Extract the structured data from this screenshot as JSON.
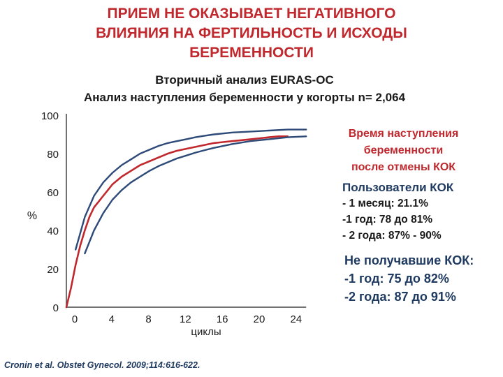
{
  "title": {
    "lines": [
      "ПРИЕМ НЕ ОКАЗЫВАЕТ НЕГАТИВНОГО",
      "ВЛИЯНИЯ НА ФЕРТИЛЬНОСТЬ И ИСХОДЫ",
      "БЕРЕМЕННОСТИ"
    ]
  },
  "subtitle": {
    "lines": [
      "Вторичный анализ EURAS-OC",
      "Анализ наступления беременности у когорты  n= 2,064"
    ]
  },
  "annotations": {
    "time_to_pregnancy": [
      "Время наступления",
      "беременности",
      "после отмены КОК"
    ],
    "coc_users": {
      "heading": "Пользователи КОК",
      "items": [
        "- 1 месяц: 21.1%",
        "-1 год: 78 до 81%",
        "- 2 года: 87% - 90%"
      ]
    },
    "non_users": {
      "heading": "Не получавшие КОК:",
      "items": [
        "-1 год: 75 до 82%",
        "-2 года: 87 до 91%"
      ]
    }
  },
  "citation": "Cronin et al. Obstet Gynecol. 2009;114:616-622.",
  "colors": {
    "title": "#c0282d",
    "red_series": "#c0282d",
    "blue_series": "#2e4a78",
    "navy_text": "#1f3a60"
  },
  "chart_data": {
    "type": "line",
    "title": "",
    "xlabel": "циклы",
    "ylabel": "%",
    "xlim": [
      0,
      24
    ],
    "ylim": [
      0,
      100
    ],
    "x_ticks": [
      "0",
      "4",
      "8",
      "12",
      "16",
      "20",
      "24"
    ],
    "y_ticks": [
      "0",
      "20",
      "40",
      "60",
      "80",
      "100"
    ],
    "grid": false,
    "series": [
      {
        "role": "upper-bound",
        "color": "#2e4a78",
        "x": [
          1,
          2,
          3,
          4,
          5,
          6,
          7,
          8,
          9,
          10,
          11,
          12,
          13,
          14,
          15,
          16,
          18,
          20,
          22,
          24,
          26
        ],
        "y": [
          30,
          47,
          58,
          65,
          70,
          74,
          77,
          80,
          82,
          84,
          85.5,
          86.5,
          87.5,
          88.5,
          89.3,
          90,
          91,
          91.5,
          92,
          92.5,
          92.5
        ]
      },
      {
        "role": "estimate",
        "color": "#c0282d",
        "x": [
          0,
          0.5,
          1,
          1.5,
          2,
          2.5,
          3,
          3.5,
          4,
          4.5,
          5,
          5.5,
          6,
          6.5,
          7,
          7.5,
          8,
          8.5,
          9,
          9.5,
          10,
          10.5,
          11,
          12,
          13,
          14,
          15,
          16,
          17,
          18,
          19,
          20,
          21,
          22,
          23,
          24
        ],
        "y": [
          0,
          10,
          22,
          32,
          40,
          47,
          52,
          55,
          58,
          61,
          64,
          66,
          68,
          69.5,
          71,
          72.5,
          74,
          75,
          76,
          77,
          78,
          79,
          80,
          81.5,
          82.5,
          83.5,
          84.5,
          85.5,
          86,
          86.5,
          87,
          87.5,
          88,
          88.5,
          89,
          89
        ]
      },
      {
        "role": "lower-bound",
        "color": "#2e4a78",
        "x": [
          2,
          3,
          4,
          5,
          6,
          7,
          8,
          9,
          10,
          11,
          12,
          13,
          14,
          15,
          16,
          18,
          20,
          22,
          24,
          26
        ],
        "y": [
          28,
          40,
          49,
          56,
          61,
          65,
          68,
          71,
          73.5,
          75.5,
          77.5,
          79,
          80.5,
          81.8,
          83,
          85,
          86.5,
          87.5,
          88.5,
          89
        ]
      }
    ]
  }
}
